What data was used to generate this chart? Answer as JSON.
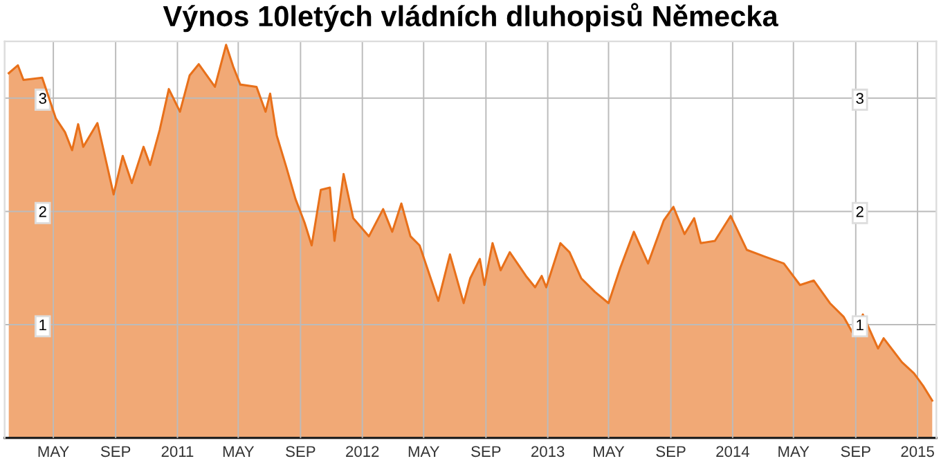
{
  "chart_data": {
    "type": "area",
    "title": "Výnos 10letých vládních dluhopisů Německa",
    "x": [
      "2010-02-02",
      "2010-02-20",
      "2010-03-03",
      "2010-04-09",
      "2010-05-06",
      "2010-05-24",
      "2010-06-07",
      "2010-06-19",
      "2010-06-29",
      "2010-07-27",
      "2010-08-28",
      "2010-09-15",
      "2010-10-03",
      "2010-10-26",
      "2010-11-08",
      "2010-11-27",
      "2010-12-15",
      "2011-01-06",
      "2011-01-25",
      "2011-02-12",
      "2011-03-16",
      "2011-04-07",
      "2011-04-21",
      "2011-05-05",
      "2011-06-06",
      "2011-06-24",
      "2011-07-03",
      "2011-07-16",
      "2011-08-04",
      "2011-08-22",
      "2011-09-09",
      "2011-09-23",
      "2011-10-11",
      "2011-10-29",
      "2011-11-07",
      "2011-11-25",
      "2011-12-14",
      "2012-01-14",
      "2012-02-11",
      "2012-02-29",
      "2012-03-18",
      "2012-04-05",
      "2012-04-23",
      "2012-05-30",
      "2012-06-22",
      "2012-07-19",
      "2012-08-01",
      "2012-08-20",
      "2012-08-29",
      "2012-09-14",
      "2012-09-30",
      "2012-10-18",
      "2012-11-19",
      "2012-12-07",
      "2012-12-20",
      "2012-12-29",
      "2013-01-26",
      "2013-02-13",
      "2013-03-08",
      "2013-04-04",
      "2013-05-01",
      "2013-05-24",
      "2013-06-20",
      "2013-07-18",
      "2013-08-18",
      "2013-09-06",
      "2013-09-28",
      "2013-10-17",
      "2013-10-30",
      "2013-11-27",
      "2013-12-28",
      "2014-01-29",
      "2014-03-06",
      "2014-04-12",
      "2014-05-14",
      "2014-06-10",
      "2014-07-12",
      "2014-08-08",
      "2014-08-28",
      "2014-09-15",
      "2014-10-15",
      "2014-10-26",
      "2014-12-01",
      "2014-12-25",
      "2015-01-12",
      "2015-01-30"
    ],
    "series": [
      {
        "color": "#e8701a",
        "values": [
          3.22,
          3.29,
          3.16,
          3.18,
          2.82,
          2.7,
          2.54,
          2.77,
          2.57,
          2.78,
          2.15,
          2.49,
          2.25,
          2.57,
          2.41,
          2.72,
          3.08,
          2.88,
          3.2,
          3.3,
          3.1,
          3.47,
          3.28,
          3.12,
          3.1,
          2.88,
          3.04,
          2.67,
          2.39,
          2.11,
          1.9,
          1.7,
          2.19,
          2.21,
          1.74,
          2.33,
          1.94,
          1.78,
          2.02,
          1.82,
          2.07,
          1.78,
          1.7,
          1.21,
          1.62,
          1.19,
          1.41,
          1.58,
          1.35,
          1.72,
          1.48,
          1.64,
          1.43,
          1.33,
          1.43,
          1.33,
          1.72,
          1.64,
          1.41,
          1.29,
          1.19,
          1.5,
          1.82,
          1.54,
          1.92,
          2.04,
          1.8,
          1.94,
          1.72,
          1.74,
          1.96,
          1.66,
          1.6,
          1.54,
          1.35,
          1.39,
          1.19,
          1.07,
          0.91,
          1.09,
          0.79,
          0.88,
          0.67,
          0.57,
          0.46,
          0.33
        ]
      }
    ],
    "xlim": [
      "2010-01-25",
      "2015-02-07"
    ],
    "xticks": [
      {
        "value": "2010-05-01",
        "label": "MAY"
      },
      {
        "value": "2010-09-01",
        "label": "SEP"
      },
      {
        "value": "2011-01-01",
        "label": "2011"
      },
      {
        "value": "2011-05-01",
        "label": "MAY"
      },
      {
        "value": "2011-09-01",
        "label": "SEP"
      },
      {
        "value": "2012-01-01",
        "label": "2012"
      },
      {
        "value": "2012-05-01",
        "label": "MAY"
      },
      {
        "value": "2012-09-01",
        "label": "SEP"
      },
      {
        "value": "2013-01-01",
        "label": "2013"
      },
      {
        "value": "2013-05-01",
        "label": "MAY"
      },
      {
        "value": "2013-09-01",
        "label": "SEP"
      },
      {
        "value": "2014-01-01",
        "label": "2014"
      },
      {
        "value": "2014-05-01",
        "label": "MAY"
      },
      {
        "value": "2014-09-01",
        "label": "SEP"
      },
      {
        "value": "2015-01-01",
        "label": "2015"
      }
    ],
    "ylim": [
      0,
      3.5
    ],
    "yticks": [
      1,
      2,
      3
    ],
    "y2lim": [
      0,
      3.5
    ],
    "y2ticks": [
      1,
      2,
      3
    ],
    "grid": true
  }
}
